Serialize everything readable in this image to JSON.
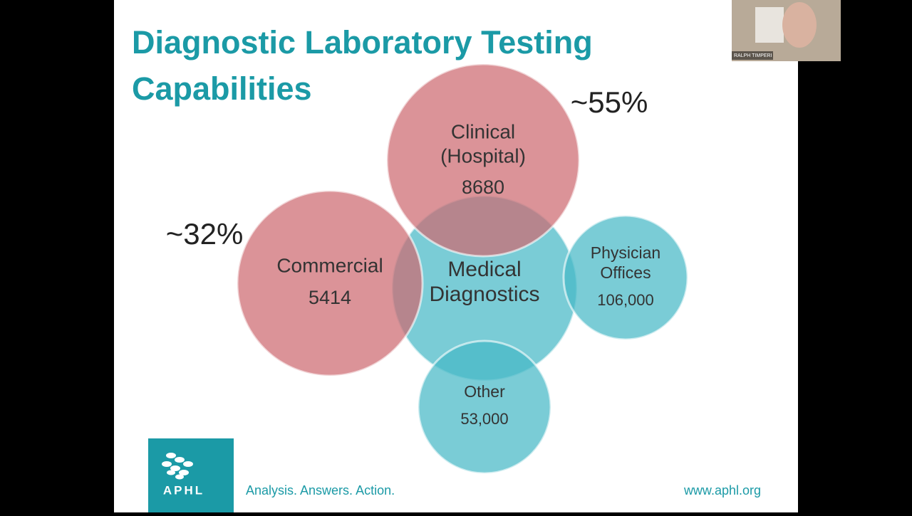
{
  "slide": {
    "title": [
      "Diagnostic Laboratory Testing",
      "Capabilities"
    ],
    "nodes": [
      {
        "label": [
          "Medical",
          "Diagnostics"
        ]
      },
      {
        "label": [
          "Other"
        ],
        "count": "53,000"
      },
      {
        "label": [
          "Physician",
          "Offices"
        ],
        "count": "106,000"
      },
      {
        "label": [
          "Commercial"
        ],
        "count": "5414"
      },
      {
        "label": [
          "Clinical",
          "(Hospital)"
        ],
        "count": "8680"
      }
    ],
    "annotations": [
      "~55%",
      "~32%"
    ],
    "footer": {
      "logo": "APHL",
      "tagline": "Analysis. Answers. Action.",
      "url": "www.aphl.org"
    }
  },
  "webcam": {
    "name": "RALPH TIMPERI"
  }
}
